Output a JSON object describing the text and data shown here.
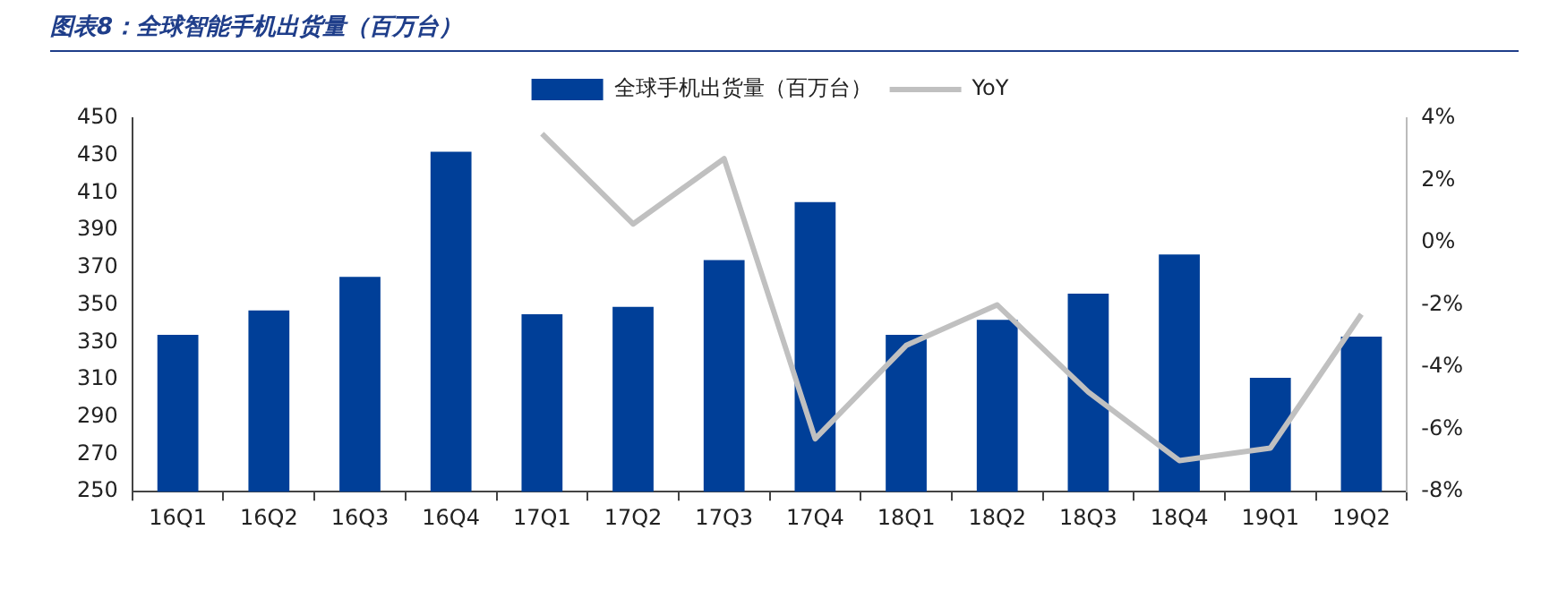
{
  "chart_data": {
    "type": "bar",
    "title": "图表8：全球智能手机出货量（百万台）",
    "categories": [
      "16Q1",
      "16Q2",
      "16Q3",
      "16Q4",
      "17Q1",
      "17Q2",
      "17Q3",
      "17Q4",
      "18Q1",
      "18Q2",
      "18Q3",
      "18Q4",
      "19Q1",
      "19Q2"
    ],
    "series": [
      {
        "name": "全球手机出货量（百万台）",
        "color": "#003f98",
        "values": [
          334,
          347,
          365,
          432,
          345,
          349,
          374,
          405,
          334,
          342,
          356,
          377,
          311,
          333
        ]
      },
      {
        "name": "YoY",
        "type": "line",
        "axis": "y2",
        "color": "#c0c0c0",
        "values": [
          null,
          null,
          null,
          null,
          3.5,
          0.6,
          2.7,
          -6.3,
          -3.3,
          -2.0,
          -4.8,
          -7.0,
          -6.6,
          -2.3
        ]
      }
    ],
    "ylim": [
      250,
      450
    ],
    "yticks": [
      250,
      270,
      290,
      310,
      330,
      350,
      370,
      390,
      410,
      430,
      450
    ],
    "y2lim": [
      -8,
      4
    ],
    "y2ticks": [
      {
        "value": -8,
        "label": "-8%"
      },
      {
        "value": -6,
        "label": "-6%"
      },
      {
        "value": -4,
        "label": "-4%"
      },
      {
        "value": -2,
        "label": "-2%"
      },
      {
        "value": 0,
        "label": "0%"
      },
      {
        "value": 2,
        "label": "2%"
      },
      {
        "value": 4,
        "label": "4%"
      }
    ],
    "grid": false,
    "legend": "top",
    "marker": "none",
    "line_style": "solid"
  }
}
